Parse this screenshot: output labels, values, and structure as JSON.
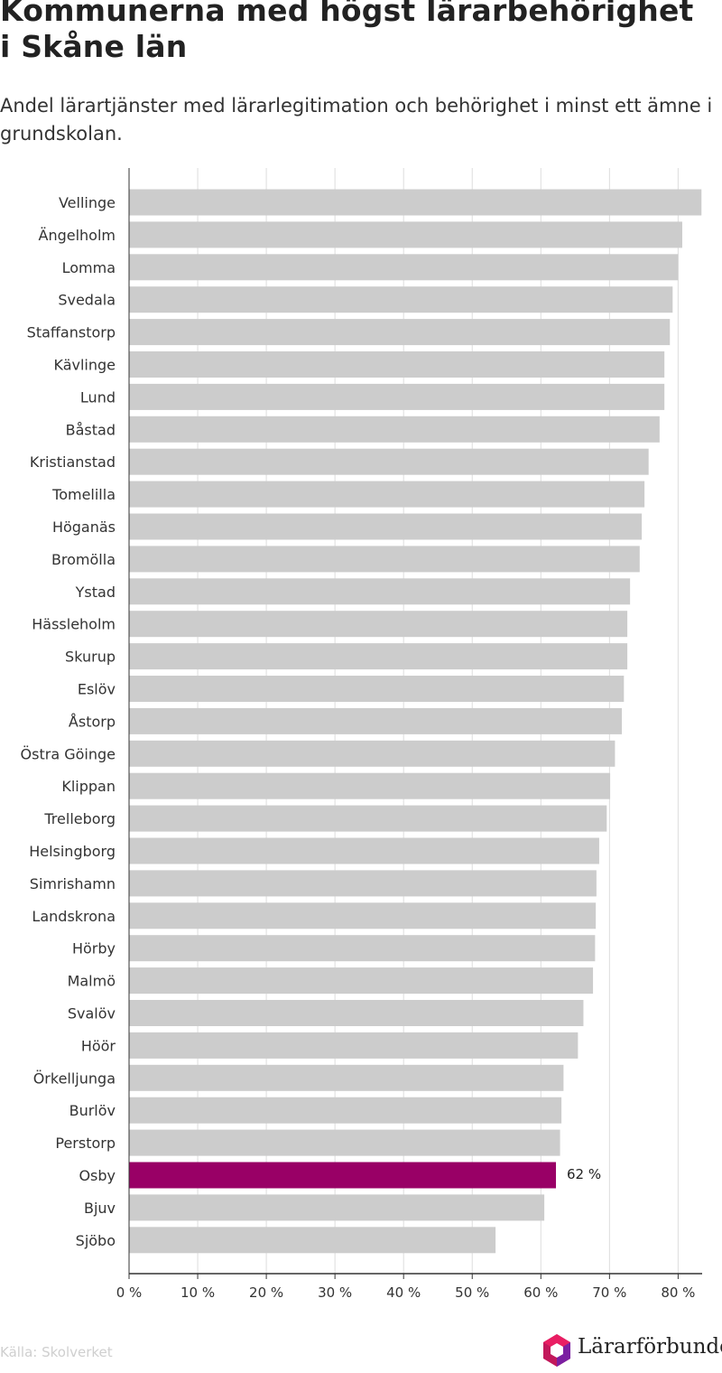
{
  "title": "Kommunerna med högst lärarbehörighet i Skåne län",
  "subtitle": "Andel lärartjänster med lärarlegitimation och behörighet i minst ett ämne i grundskolan.",
  "source": "Källa: Skolverket",
  "logo_text": "Lärarförbundet",
  "colors": {
    "bar": "#cccccc",
    "highlight": "#990066",
    "grid": "#dddddd",
    "axis": "#333333"
  },
  "chart_data": {
    "type": "bar",
    "orientation": "horizontal",
    "title": "Kommunerna med högst lärarbehörighet i Skåne län",
    "subtitle": "Andel lärartjänster med lärarlegitimation och behörighet i minst ett ämne i grundskolan.",
    "categories": [
      "Vellinge",
      "Ängelholm",
      "Lomma",
      "Svedala",
      "Staffanstorp",
      "Kävlinge",
      "Lund",
      "Båstad",
      "Kristianstad",
      "Tomelilla",
      "Höganäs",
      "Bromölla",
      "Ystad",
      "Hässleholm",
      "Skurup",
      "Eslöv",
      "Åstorp",
      "Östra Göinge",
      "Klippan",
      "Trelleborg",
      "Helsingborg",
      "Simrishamn",
      "Landskrona",
      "Hörby",
      "Malmö",
      "Svalöv",
      "Höör",
      "Örkelljunga",
      "Burlöv",
      "Perstorp",
      "Osby",
      "Bjuv",
      "Sjöbo"
    ],
    "values": [
      83.4,
      80.6,
      80.0,
      79.2,
      78.8,
      78.0,
      78.0,
      77.3,
      75.7,
      75.1,
      74.7,
      74.4,
      73.0,
      72.6,
      72.6,
      72.1,
      71.8,
      70.8,
      70.1,
      69.6,
      68.5,
      68.1,
      68.0,
      67.9,
      67.6,
      66.2,
      65.4,
      63.3,
      63.0,
      62.8,
      62.2,
      60.5,
      53.4
    ],
    "highlight": "Osby",
    "highlight_label": "62 %",
    "xlim": [
      0,
      83.5
    ],
    "xticks": [
      0,
      10,
      20,
      30,
      40,
      50,
      60,
      70,
      80
    ],
    "xtick_labels": [
      "0 %",
      "10 %",
      "20 %",
      "30 %",
      "40 %",
      "50 %",
      "60 %",
      "70 %",
      "80 %"
    ],
    "xlabel": "",
    "ylabel": "",
    "grid": true
  }
}
